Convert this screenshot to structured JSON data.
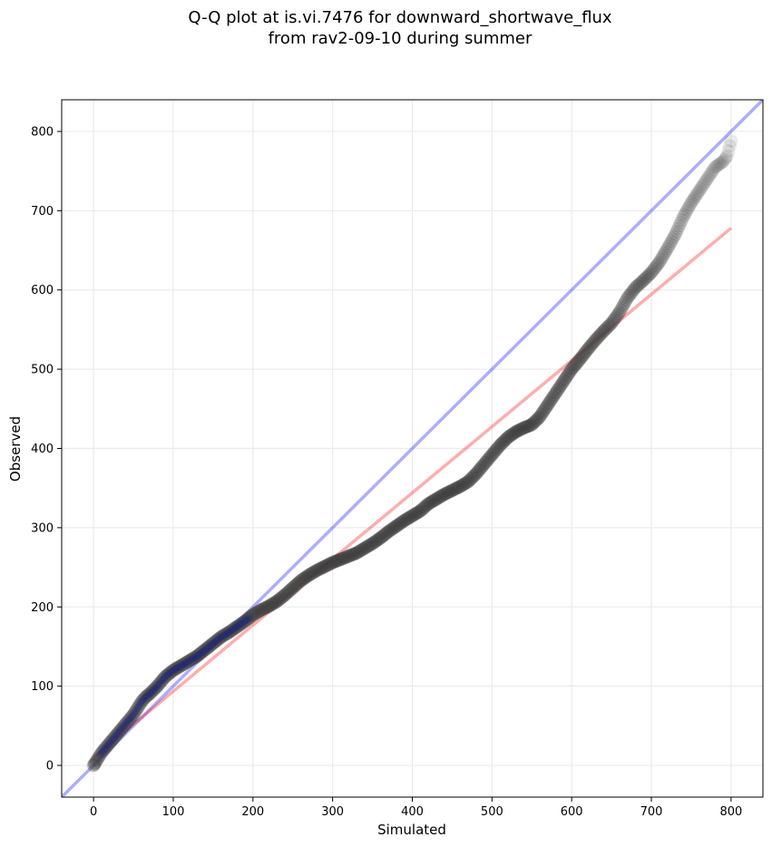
{
  "chart_data": {
    "type": "scatter",
    "title_lines": [
      "Q-Q plot at is.vi.7476 for downward_shortwave_flux",
      "from rav2-09-10 during summer"
    ],
    "xlabel": "Simulated",
    "ylabel": "Observed",
    "xlim": [
      -40,
      840
    ],
    "ylim": [
      -40,
      840
    ],
    "xticks": [
      0,
      100,
      200,
      300,
      400,
      500,
      600,
      700,
      800
    ],
    "yticks": [
      0,
      100,
      200,
      300,
      400,
      500,
      600,
      700,
      800
    ],
    "grid": true,
    "quantile_curve": [
      [
        0,
        0
      ],
      [
        2,
        3
      ],
      [
        5,
        8
      ],
      [
        10,
        16
      ],
      [
        15,
        22
      ],
      [
        20,
        28
      ],
      [
        25,
        34
      ],
      [
        30,
        40
      ],
      [
        35,
        46
      ],
      [
        40,
        52
      ],
      [
        45,
        58
      ],
      [
        50,
        64
      ],
      [
        55,
        72
      ],
      [
        60,
        80
      ],
      [
        65,
        86
      ],
      [
        70,
        90
      ],
      [
        75,
        95
      ],
      [
        80,
        100
      ],
      [
        85,
        106
      ],
      [
        90,
        112
      ],
      [
        95,
        116
      ],
      [
        100,
        120
      ],
      [
        110,
        126
      ],
      [
        120,
        132
      ],
      [
        130,
        138
      ],
      [
        140,
        146
      ],
      [
        150,
        154
      ],
      [
        160,
        162
      ],
      [
        170,
        168
      ],
      [
        180,
        175
      ],
      [
        190,
        182
      ],
      [
        200,
        190
      ],
      [
        210,
        196
      ],
      [
        220,
        201
      ],
      [
        230,
        207
      ],
      [
        240,
        215
      ],
      [
        250,
        224
      ],
      [
        260,
        233
      ],
      [
        270,
        240
      ],
      [
        280,
        246
      ],
      [
        290,
        251
      ],
      [
        300,
        256
      ],
      [
        310,
        260
      ],
      [
        320,
        264
      ],
      [
        330,
        268
      ],
      [
        340,
        274
      ],
      [
        350,
        280
      ],
      [
        360,
        287
      ],
      [
        370,
        295
      ],
      [
        380,
        302
      ],
      [
        390,
        309
      ],
      [
        400,
        315
      ],
      [
        410,
        321
      ],
      [
        420,
        330
      ],
      [
        430,
        336
      ],
      [
        440,
        342
      ],
      [
        450,
        347
      ],
      [
        460,
        352
      ],
      [
        470,
        358
      ],
      [
        480,
        368
      ],
      [
        490,
        380
      ],
      [
        500,
        392
      ],
      [
        510,
        404
      ],
      [
        520,
        414
      ],
      [
        530,
        421
      ],
      [
        540,
        426
      ],
      [
        550,
        430
      ],
      [
        560,
        440
      ],
      [
        570,
        455
      ],
      [
        580,
        470
      ],
      [
        590,
        485
      ],
      [
        600,
        500
      ],
      [
        610,
        512
      ],
      [
        620,
        525
      ],
      [
        630,
        537
      ],
      [
        640,
        548
      ],
      [
        650,
        558
      ],
      [
        660,
        572
      ],
      [
        670,
        590
      ],
      [
        680,
        603
      ],
      [
        690,
        612
      ],
      [
        700,
        622
      ],
      [
        710,
        635
      ],
      [
        720,
        652
      ],
      [
        730,
        670
      ],
      [
        740,
        692
      ],
      [
        750,
        710
      ],
      [
        760,
        725
      ],
      [
        770,
        740
      ],
      [
        780,
        755
      ],
      [
        790,
        762
      ],
      [
        795,
        769
      ],
      [
        800,
        788
      ]
    ],
    "highlight_upto_x": 195,
    "reference_lines": [
      {
        "name": "1:1 line",
        "from": [
          -40,
          -40
        ],
        "to": [
          840,
          840
        ],
        "color": "#0000ff",
        "opacity": 0.32
      },
      {
        "name": "fit line",
        "from": [
          0,
          10
        ],
        "to": [
          800,
          678
        ],
        "color": "#ff0000",
        "opacity": 0.32
      }
    ],
    "colors": {
      "points": "#3a3a3a",
      "highlight_points": "#1a237e",
      "highlight_line": "#a00000"
    }
  }
}
